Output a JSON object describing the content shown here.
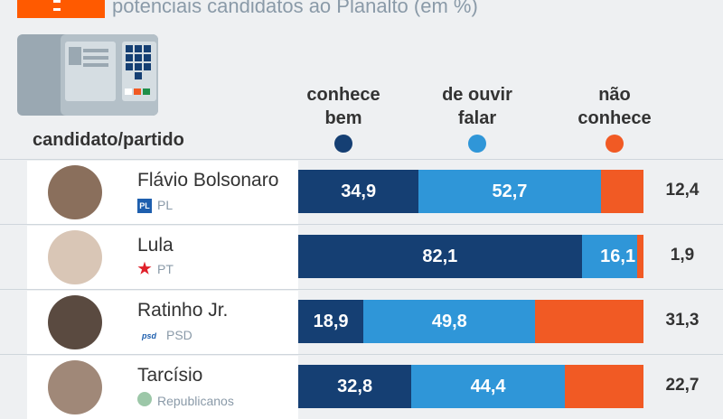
{
  "header": {
    "subtitle": "potenciais candidatos ao Planalto (em %)"
  },
  "chart_data": {
    "type": "bar",
    "stacked": true,
    "orientation": "horizontal",
    "unit": "%",
    "title": "potenciais candidatos ao Planalto (em %)",
    "row_label_header": "candidato/partido",
    "legend": [
      {
        "label": "conhece bem",
        "color": "#153f73"
      },
      {
        "label": "de ouvir falar",
        "color": "#2f96d8"
      },
      {
        "label": "não conhece",
        "color": "#f15a24"
      }
    ],
    "categories": [
      {
        "name": "Flávio Bolsonaro",
        "party": "PL",
        "party_logo": "PL"
      },
      {
        "name": "Lula",
        "party": "PT",
        "party_logo": "PT"
      },
      {
        "name": "Ratinho Jr.",
        "party": "PSD",
        "party_logo": "psd"
      },
      {
        "name": "Tarcísio",
        "party": "Republicanos",
        "party_logo": ""
      }
    ],
    "series": [
      {
        "name": "conhece bem",
        "values": [
          "34,9",
          "82,1",
          "18,9",
          "32,8"
        ],
        "numeric": [
          34.9,
          82.1,
          18.9,
          32.8
        ]
      },
      {
        "name": "de ouvir falar",
        "values": [
          "52,7",
          "16,1",
          "49,8",
          "44,4"
        ],
        "numeric": [
          52.7,
          16.1,
          49.8,
          44.4
        ]
      },
      {
        "name": "não conhece",
        "values": [
          "12,4",
          "1,9",
          "31,3",
          "22,7"
        ],
        "numeric": [
          12.4,
          1.9,
          31.3,
          22.7
        ]
      }
    ]
  }
}
